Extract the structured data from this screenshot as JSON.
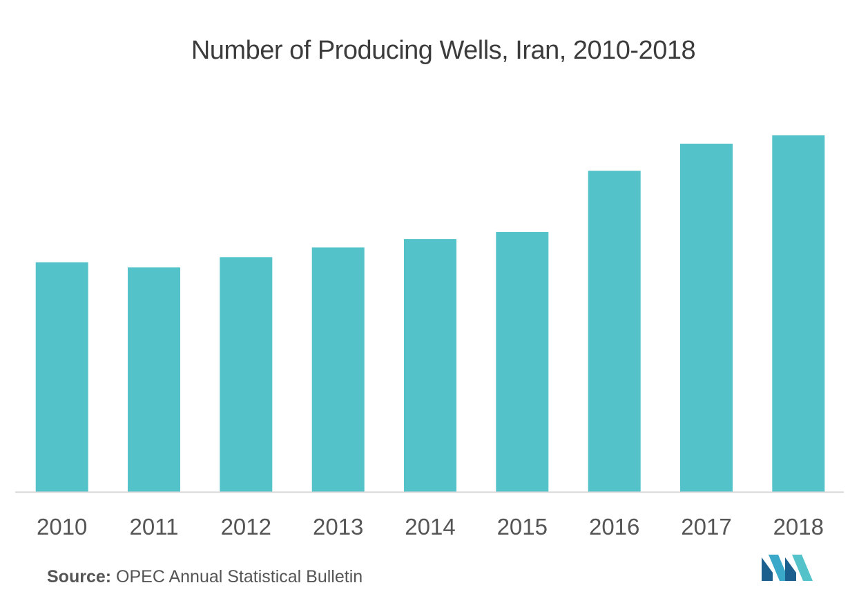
{
  "chart_data": {
    "type": "bar",
    "title": "Number of Producing Wells, Iran, 2010-2018",
    "categories": [
      "2010",
      "2011",
      "2012",
      "2013",
      "2014",
      "2015",
      "2016",
      "2017",
      "2018"
    ],
    "values": [
      1780,
      1740,
      1820,
      1895,
      1960,
      2015,
      2490,
      2700,
      2765
    ],
    "ylim": [
      0,
      3000
    ],
    "xlabel": "",
    "ylabel": "",
    "grid": false,
    "legend": "none",
    "bar_color": "#53c3c9",
    "axis_color": "#d4d4d4"
  },
  "source": {
    "label": "Source:",
    "text": " OPEC Annual Statistical Bulletin"
  },
  "logo": {
    "icon": "mordor-intelligence-logo-icon",
    "colors": [
      "#1b5f8f",
      "#3aa8c9",
      "#53c3c9"
    ]
  }
}
